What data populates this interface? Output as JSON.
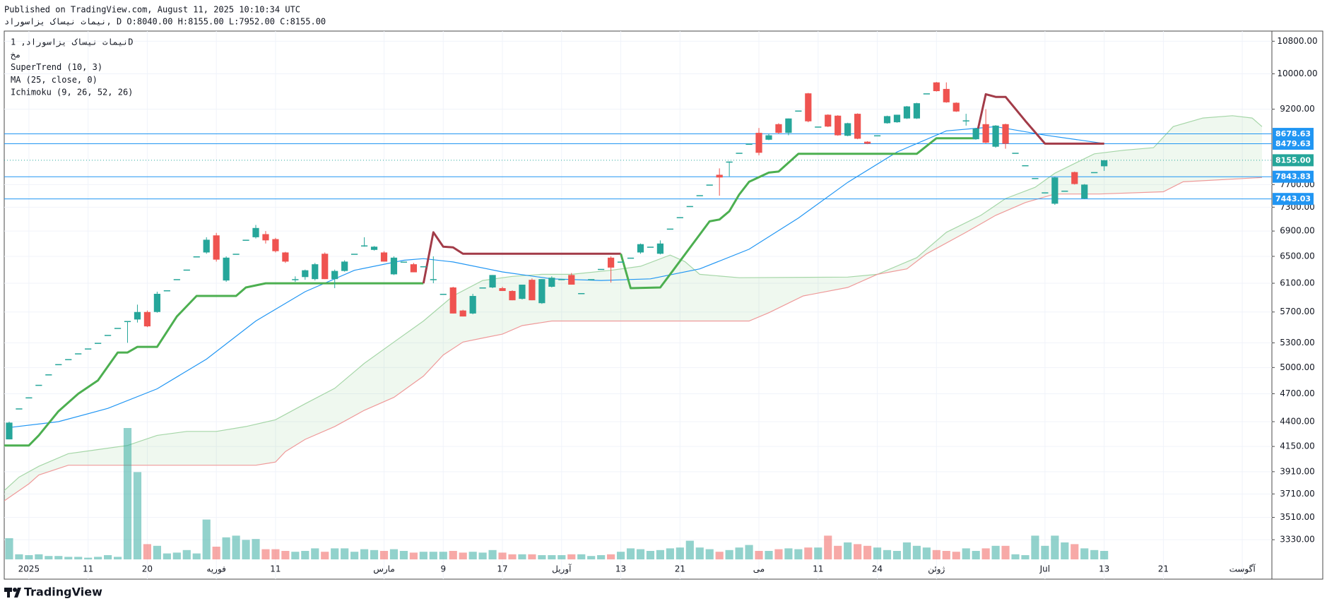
{
  "header": {
    "published": "Published on TradingView.com, August 11, 2025 10:10:34 UTC",
    "symbol_line": "نیمات نیساک یزاسوراد, D O:8040.00 H:8155.00 L:7952.00 C:8155.00"
  },
  "chart_data": {
    "type": "candlestick",
    "legend_lines": [
      "نیمات نیساک یزاسوراد, 1D",
      "مخ",
      "SuperTrend (10, 3)",
      "MA (25, close, 0)",
      "Ichimoku (9, 26, 52, 26)"
    ],
    "x": [
      0,
      1,
      2,
      3,
      4,
      5,
      6,
      7,
      8,
      9,
      10,
      11,
      12,
      13,
      14,
      15,
      16,
      17,
      18,
      19,
      20,
      21,
      22,
      23,
      24,
      25,
      26,
      27,
      28,
      29,
      30,
      31,
      32,
      33,
      34,
      35,
      36,
      37,
      38,
      39,
      40,
      41,
      42,
      43,
      44,
      45,
      46,
      47,
      48,
      49,
      50,
      51,
      52,
      53,
      54,
      55,
      56,
      57,
      58,
      59,
      60,
      61,
      62,
      63,
      64,
      65,
      66,
      67,
      68,
      69,
      70,
      71,
      72,
      73,
      74,
      75,
      76,
      77,
      78,
      79,
      80,
      81,
      82,
      83,
      84,
      85,
      86,
      87,
      88,
      89,
      90,
      91,
      92,
      93,
      94,
      95,
      96,
      97,
      98,
      99,
      100,
      101,
      102,
      103,
      104,
      105,
      106,
      107,
      108,
      109,
      110,
      111
    ],
    "open": [
      4220,
      4540,
      4660,
      4800,
      4920,
      5040,
      5100,
      5170,
      5230,
      5300,
      5400,
      5490,
      5580,
      5600,
      5700,
      5700,
      6000,
      6160,
      6300,
      6500,
      6560,
      6830,
      6140,
      6540,
      6760,
      6800,
      6850,
      6770,
      6560,
      6160,
      6190,
      6160,
      6540,
      6160,
      6280,
      6540,
      6670,
      6600,
      6560,
      6230,
      6420,
      6380,
      6350,
      6160,
      5950,
      6040,
      5720,
      5680,
      6040,
      6040,
      6030,
      5990,
      5880,
      6150,
      5820,
      6050,
      6160,
      6220,
      5960,
      6160,
      6310,
      6480,
      6420,
      6480,
      6560,
      6650,
      6540,
      6940,
      7130,
      7320,
      7510,
      7700,
      7880,
      8130,
      8300,
      8480,
      8700,
      8560,
      8880,
      8700,
      9170,
      9550,
      8830,
      9080,
      9060,
      8640,
      9100,
      8520,
      8650,
      8900,
      8920,
      9000,
      9000,
      9550,
      9800,
      9650,
      9340,
      8960,
      8570,
      8880,
      8420,
      8880,
      8300,
      8060,
      7820,
      7560,
      7360,
      7590,
      7930,
      7450,
      7930,
      8040
    ],
    "high": [
      4400,
      4540,
      4660,
      4800,
      4920,
      5040,
      5100,
      5170,
      5230,
      5300,
      5400,
      5490,
      5580,
      5800,
      5720,
      5980,
      6000,
      6160,
      6300,
      6500,
      6800,
      6870,
      6500,
      6540,
      6760,
      7000,
      6900,
      6790,
      6570,
      6200,
      6300,
      6400,
      6560,
      6300,
      6440,
      6540,
      6800,
      6660,
      6580,
      6500,
      6420,
      6400,
      6350,
      6500,
      5950,
      6050,
      5730,
      5950,
      6040,
      6220,
      6050,
      6000,
      6080,
      6170,
      6160,
      6200,
      6160,
      6250,
      5960,
      6160,
      6310,
      6500,
      6420,
      6480,
      6700,
      6650,
      6750,
      6940,
      7130,
      7320,
      7510,
      7700,
      8000,
      8130,
      8300,
      8480,
      8800,
      8680,
      8900,
      9000,
      9170,
      9560,
      8830,
      9090,
      9070,
      8910,
      9110,
      8530,
      8650,
      9060,
      9080,
      9270,
      9340,
      9550,
      9810,
      9800,
      9350,
      9100,
      8800,
      9200,
      8860,
      8890,
      8300,
      8060,
      7820,
      7560,
      7840,
      7590,
      7940,
      7710,
      7930,
      8155
    ],
    "low": [
      4220,
      4540,
      4660,
      4800,
      4920,
      5040,
      5100,
      5170,
      5230,
      5300,
      5400,
      5490,
      5300,
      5560,
      5500,
      5690,
      6000,
      6160,
      6300,
      6500,
      6540,
      6420,
      6120,
      6540,
      6760,
      6780,
      6700,
      6560,
      6400,
      6120,
      6150,
      6140,
      6160,
      6030,
      6270,
      6540,
      6650,
      6590,
      6420,
      6220,
      6420,
      6260,
      6350,
      6100,
      5950,
      5680,
      5640,
      5670,
      6040,
      6030,
      5990,
      5860,
      5870,
      5860,
      5810,
      6040,
      6160,
      6080,
      5960,
      6160,
      6310,
      6110,
      6420,
      6480,
      6540,
      6650,
      6530,
      6940,
      7130,
      7320,
      7510,
      7700,
      7500,
      7850,
      8300,
      8480,
      8250,
      8550,
      8680,
      8650,
      9170,
      8920,
      8830,
      8820,
      8640,
      8630,
      8570,
      8470,
      8650,
      8890,
      8910,
      8990,
      8990,
      9550,
      9590,
      9340,
      9140,
      8850,
      8560,
      8490,
      8400,
      8380,
      8300,
      8060,
      7820,
      7560,
      7340,
      7590,
      7700,
      7440,
      7930,
      7952
    ],
    "close": [
      4390,
      4540,
      4660,
      4800,
      4920,
      5040,
      5100,
      5170,
      5230,
      5300,
      5400,
      5490,
      5580,
      5700,
      5510,
      5950,
      6000,
      6160,
      6300,
      6500,
      6760,
      6450,
      6480,
      6540,
      6760,
      6950,
      6750,
      6580,
      6420,
      6160,
      6290,
      6380,
      6160,
      6280,
      6420,
      6540,
      6670,
      6650,
      6420,
      6480,
      6420,
      6260,
      6350,
      6160,
      5950,
      5680,
      5640,
      5920,
      6040,
      6220,
      5990,
      5860,
      6080,
      5860,
      6160,
      6180,
      6160,
      6080,
      5960,
      6160,
      6310,
      6330,
      6420,
      6480,
      6690,
      6650,
      6700,
      6940,
      7130,
      7320,
      7510,
      7700,
      7830,
      8130,
      8300,
      8480,
      8300,
      8650,
      8700,
      9000,
      9170,
      8940,
      8830,
      8830,
      8650,
      8900,
      8580,
      8480,
      8650,
      9050,
      9080,
      9260,
      9330,
      9550,
      9600,
      9350,
      9150,
      8960,
      8790,
      8500,
      8850,
      8480,
      8300,
      8060,
      7820,
      7560,
      7830,
      7590,
      7710,
      7700,
      7930,
      8155
    ],
    "volume": [
      25,
      6,
      5,
      6,
      4,
      4,
      3,
      3,
      2,
      3,
      5,
      3,
      155,
      103,
      18,
      16,
      7,
      8,
      11,
      7,
      47,
      15,
      26,
      28,
      23,
      24,
      12,
      12,
      10,
      9,
      10,
      13,
      9,
      13,
      13,
      9,
      12,
      11,
      10,
      12,
      10,
      8,
      9,
      9,
      9,
      10,
      8,
      9,
      8,
      11,
      8,
      6,
      6,
      6,
      5,
      5,
      5,
      6,
      6,
      4,
      5,
      6,
      9,
      13,
      12,
      10,
      11,
      13,
      14,
      22,
      14,
      12,
      9,
      11,
      14,
      17,
      10,
      10,
      12,
      13,
      12,
      14,
      14,
      28,
      16,
      20,
      18,
      16,
      14,
      11,
      10,
      20,
      16,
      14,
      11,
      10,
      9,
      13,
      10,
      13,
      16,
      16,
      6,
      5,
      28,
      16,
      28,
      20,
      18,
      13,
      11,
      10
    ],
    "volume_ylim": [
      0,
      155
    ],
    "colors": {
      "up": "#26a69a",
      "down": "#ef5350"
    },
    "ylim": [
      3034,
      11062
    ],
    "log_scale": true,
    "yticks": [
      {
        "value": 10800,
        "label": "10800.00"
      },
      {
        "value": 10000,
        "label": "10000.00"
      },
      {
        "value": 9200,
        "label": "9200.00"
      },
      {
        "value": 7700,
        "label": "7700.00"
      },
      {
        "value": 7300,
        "label": "7300.00"
      },
      {
        "value": 6900,
        "label": "6900.00"
      },
      {
        "value": 6500,
        "label": "6500.00"
      },
      {
        "value": 6100,
        "label": "6100.00"
      },
      {
        "value": 5700,
        "label": "5700.00"
      },
      {
        "value": 5300,
        "label": "5300.00"
      },
      {
        "value": 5000,
        "label": "5000.00"
      },
      {
        "value": 4700,
        "label": "4700.00"
      },
      {
        "value": 4400,
        "label": "4400.00"
      },
      {
        "value": 4150,
        "label": "4150.00"
      },
      {
        "value": 3910,
        "label": "3910.00"
      },
      {
        "value": 3710,
        "label": "3710.00"
      },
      {
        "value": 3510,
        "label": "3510.00"
      },
      {
        "value": 3330,
        "label": "3330.00"
      }
    ],
    "xlim": [
      -0.5,
      128
    ],
    "xticks": [
      {
        "value": 2,
        "label": "2025"
      },
      {
        "value": 8,
        "label": "11"
      },
      {
        "value": 14,
        "label": "20"
      },
      {
        "value": 21,
        "label": "فوریه"
      },
      {
        "value": 27,
        "label": "11"
      },
      {
        "value": 38,
        "label": "مارس"
      },
      {
        "value": 44,
        "label": "9"
      },
      {
        "value": 50,
        "label": "17"
      },
      {
        "value": 56,
        "label": "آوریل"
      },
      {
        "value": 62,
        "label": "13"
      },
      {
        "value": 68,
        "label": "21"
      },
      {
        "value": 76,
        "label": "می"
      },
      {
        "value": 82,
        "label": "11"
      },
      {
        "value": 88,
        "label": "24"
      },
      {
        "value": 94,
        "label": "ژوئن"
      },
      {
        "value": 105,
        "label": "Jul"
      },
      {
        "value": 111,
        "label": "13"
      },
      {
        "value": 117,
        "label": "21"
      },
      {
        "value": 125,
        "label": "آگوست"
      }
    ],
    "grid": true,
    "ma": {
      "color": "#2196f3",
      "x": [
        0,
        5,
        10,
        15,
        20,
        25,
        30,
        35,
        40,
        42,
        45,
        50,
        55,
        60,
        65,
        70,
        75,
        80,
        85,
        90,
        95,
        100,
        105,
        111
      ],
      "values": [
        4340,
        4400,
        4540,
        4755,
        5100,
        5580,
        5980,
        6290,
        6440,
        6465,
        6415,
        6265,
        6164,
        6140,
        6164,
        6310,
        6610,
        7115,
        7740,
        8315,
        8740,
        8828,
        8654,
        8483
      ]
    },
    "supertrend": [
      {
        "color": "#4caf50",
        "x": [
          -0.5,
          2,
          3,
          5,
          7,
          9,
          11,
          12,
          13,
          15,
          17,
          19,
          23,
          24,
          26,
          42
        ],
        "values": [
          4160,
          4160,
          4260,
          4510,
          4700,
          4850,
          5180,
          5180,
          5250,
          5250,
          5640,
          5920,
          5920,
          6040,
          6100,
          6100
        ]
      },
      {
        "color": "#a23b48",
        "x": [
          42,
          43,
          44,
          45,
          46,
          62
        ],
        "values": [
          6100,
          6880,
          6650,
          6640,
          6540,
          6540
        ]
      },
      {
        "color": "#4caf50",
        "x": [
          62,
          63,
          66,
          67,
          71,
          72,
          73,
          74,
          75,
          77,
          78,
          80,
          92,
          94,
          98
        ],
        "values": [
          6540,
          6030,
          6040,
          6230,
          7060,
          7090,
          7230,
          7520,
          7750,
          7920,
          7940,
          8280,
          8280,
          8590,
          8590
        ]
      },
      {
        "color": "#a23b48",
        "x": [
          98,
          99,
          100,
          101,
          103,
          105,
          111
        ],
        "values": [
          8590,
          9530,
          9470,
          9470,
          8950,
          8480,
          8480
        ]
      }
    ],
    "ichimoku": {
      "fill": "rgba(76,175,80,0.09)",
      "upper": {
        "color": "#a5d6a7",
        "x": [
          -0.5,
          1,
          3,
          6,
          9,
          12,
          15,
          18,
          21,
          24,
          27,
          30,
          33,
          36,
          39,
          42,
          45,
          48,
          51,
          54,
          57,
          61,
          64,
          67,
          68.5,
          70,
          74,
          85,
          88,
          92,
          95,
          98.5,
          101,
          104,
          106,
          110,
          113,
          116,
          118,
          121,
          124,
          126,
          127
        ],
        "values": [
          3740,
          3860,
          3960,
          4080,
          4120,
          4160,
          4260,
          4300,
          4300,
          4350,
          4420,
          4590,
          4760,
          5050,
          5310,
          5580,
          5920,
          6140,
          6200,
          6230,
          6230,
          6290,
          6350,
          6520,
          6420,
          6230,
          6180,
          6190,
          6230,
          6480,
          6880,
          7160,
          7450,
          7650,
          7910,
          8280,
          8350,
          8400,
          8830,
          9010,
          9060,
          9010,
          8830
        ]
      },
      "lower": {
        "color": "#ef9a9a",
        "x": [
          -0.5,
          2,
          3,
          6,
          12,
          15,
          25,
          27,
          28,
          30,
          33,
          36,
          39,
          42,
          44,
          46,
          48,
          50,
          52,
          55,
          75,
          77,
          80.5,
          85,
          88,
          91,
          93,
          97,
          100,
          103,
          106,
          110.5,
          117,
          119,
          127
        ],
        "values": [
          3650,
          3800,
          3880,
          3970,
          3970,
          3970,
          3970,
          4000,
          4100,
          4220,
          4350,
          4520,
          4660,
          4900,
          5150,
          5310,
          5360,
          5410,
          5520,
          5580,
          5580,
          5690,
          5920,
          6040,
          6230,
          6310,
          6540,
          6880,
          7160,
          7380,
          7530,
          7530,
          7570,
          7750,
          7830
        ]
      }
    },
    "price_lines": [
      {
        "value": 8678.63,
        "color": "#2196f3"
      },
      {
        "value": 8479.63,
        "color": "#2196f3"
      },
      {
        "value": 7843.83,
        "color": "#2196f3"
      },
      {
        "value": 7443.03,
        "color": "#2196f3"
      }
    ],
    "last_price": {
      "value": 8155,
      "label": "8155.00",
      "color": "#26a69a"
    }
  },
  "footer": {
    "brand": "TradingView"
  }
}
